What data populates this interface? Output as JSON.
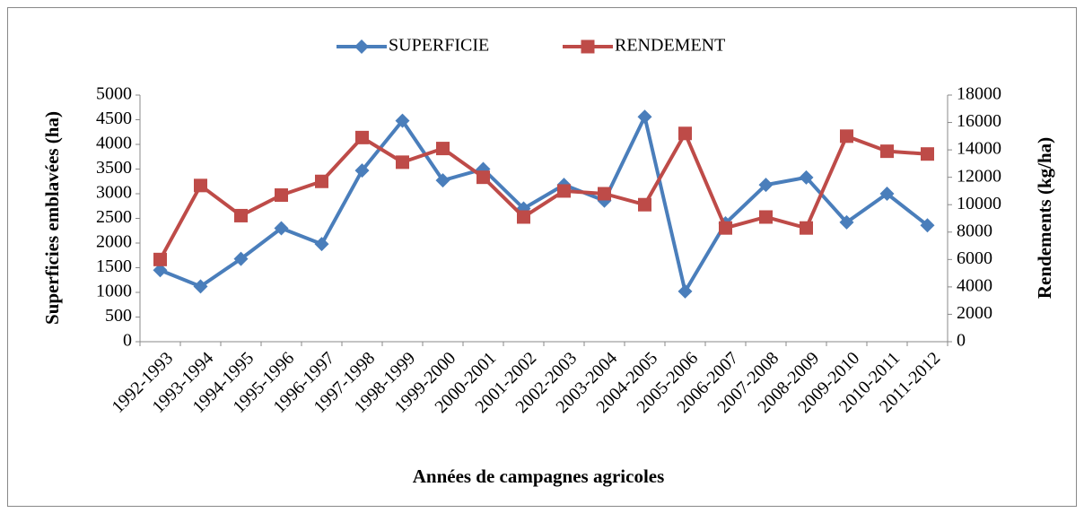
{
  "chart_data": {
    "type": "line",
    "xlabel": "Années de campagnes agricoles",
    "ylabel": "Superficies emblavées (ha)",
    "y2label": "Rendements (kg/ha)",
    "categories": [
      "1992-1993",
      "1993-1994",
      "1994-1995",
      "1995-1996",
      "1996-1997",
      "1997-1998",
      "1998-1999",
      "1999-2000",
      "2000-2001",
      "2001-2002",
      "2002-2003",
      "2003-2004",
      "2004-2005",
      "2005-2006",
      "2006-2007",
      "2007-2008",
      "2008-2009",
      "2009-2010",
      "2010-2011",
      "2011-2012"
    ],
    "series": [
      {
        "name": "SUPERFICIE",
        "color": "#4a7ebb",
        "marker": "diamond",
        "values": [
          1450,
          1120,
          1680,
          2300,
          1980,
          3470,
          4480,
          3270,
          3500,
          2700,
          3180,
          2860,
          4560,
          1020,
          2400,
          3180,
          3330,
          2420,
          3000,
          2360
        ]
      },
      {
        "name": "RENDEMENT",
        "color": "#be4b48",
        "marker": "square",
        "axis": "y2",
        "values": [
          6000,
          11400,
          9200,
          10700,
          11700,
          14900,
          13100,
          14100,
          12000,
          9100,
          11000,
          10800,
          10000,
          15200,
          8300,
          9100,
          8300,
          15000,
          13900,
          13700
        ]
      }
    ],
    "ylim": [
      0,
      5000
    ],
    "yticks": [
      0,
      500,
      1000,
      1500,
      2000,
      2500,
      3000,
      3500,
      4000,
      4500,
      5000
    ],
    "y2lim": [
      0,
      18000
    ],
    "y2ticks": [
      0,
      2000,
      4000,
      6000,
      8000,
      10000,
      12000,
      14000,
      16000,
      18000
    ],
    "legend": "top"
  }
}
